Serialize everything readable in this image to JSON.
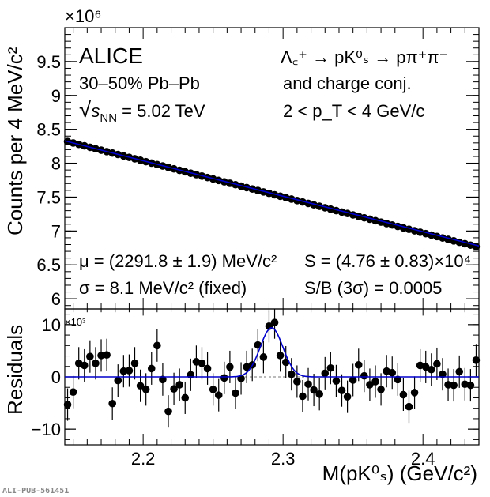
{
  "chart_data": [
    {
      "type": "scatter",
      "panel": "top",
      "ylabel": "Counts per 4 MeV/c²",
      "y_multiplier": "×10⁶",
      "xlim": [
        2.144,
        2.44
      ],
      "ylim": [
        5.85,
        10.0
      ],
      "yticks": [
        6,
        6.5,
        7,
        7.5,
        8,
        8.5,
        9,
        9.5
      ],
      "ytick_labels": [
        "6",
        "6.5",
        "7",
        "7.5",
        "8",
        "8.5",
        "9",
        "9.5"
      ],
      "background_fit": {
        "x0": 2.144,
        "y0": 8.33,
        "x1": 2.44,
        "y1": 6.78,
        "color": "#0000cc"
      },
      "points": {
        "x_start": 2.146,
        "x_step": 0.004,
        "n": 74,
        "y_at_start": 8.32,
        "y_at_end": 6.77
      },
      "annotations": {
        "experiment": "ALICE",
        "centrality": "30–50% Pb–Pb",
        "energy_sqrt": "√",
        "energy_s": "s",
        "energy_sub": "NN",
        "energy_value": " = 5.02 TeV",
        "decay": "Λ꜀⁺ → pK⁰ₛ → pπ⁺π⁻",
        "conj": "and charge conj.",
        "pt_range": "2 < p_T < 4 GeV/c",
        "mu": "μ = (2291.8 ± 1.9) MeV/c²",
        "sigma": "σ = 8.1 MeV/c² (fixed)",
        "signal": "S = (4.76 ± 0.83)×10⁴",
        "sb": "S/B (3σ) = 0.0005"
      }
    },
    {
      "type": "scatter",
      "panel": "bottom",
      "ylabel": "Residuals",
      "y_multiplier": "×10³",
      "xlabel": "M(pK⁰ₛ) (GeV/c²)",
      "xlim": [
        2.144,
        2.44
      ],
      "ylim": [
        -13,
        13
      ],
      "xticks": [
        2.2,
        2.3,
        2.4
      ],
      "xtick_labels": [
        "2.2",
        "2.3",
        "2.4"
      ],
      "yticks": [
        10,
        0,
        -10
      ],
      "ytick_labels": [
        "10",
        "0",
        "−10"
      ],
      "x": [
        2.146,
        2.15,
        2.154,
        2.158,
        2.162,
        2.166,
        2.17,
        2.174,
        2.178,
        2.182,
        2.186,
        2.19,
        2.194,
        2.198,
        2.202,
        2.206,
        2.21,
        2.214,
        2.218,
        2.222,
        2.226,
        2.23,
        2.234,
        2.238,
        2.242,
        2.246,
        2.25,
        2.254,
        2.258,
        2.262,
        2.266,
        2.27,
        2.274,
        2.278,
        2.282,
        2.286,
        2.29,
        2.294,
        2.298,
        2.302,
        2.306,
        2.31,
        2.314,
        2.318,
        2.322,
        2.326,
        2.33,
        2.334,
        2.338,
        2.342,
        2.346,
        2.35,
        2.354,
        2.358,
        2.362,
        2.366,
        2.37,
        2.374,
        2.378,
        2.382,
        2.386,
        2.39,
        2.394,
        2.398,
        2.402,
        2.406,
        2.41,
        2.414,
        2.418,
        2.422,
        2.426,
        2.43,
        2.434,
        2.438
      ],
      "y": [
        -5.3,
        -2.9,
        2.6,
        2.2,
        3.9,
        2.6,
        4.1,
        4.2,
        -5.1,
        -0.7,
        1.1,
        1.2,
        2.6,
        -1.7,
        -2.4,
        1.6,
        6.0,
        -0.5,
        -6.6,
        -2.3,
        -1.5,
        -4.0,
        0.4,
        2.9,
        2.6,
        1.6,
        -2.4,
        -3.5,
        -0.2,
        1.9,
        -3.1,
        -0.3,
        1.9,
        2.3,
        6.1,
        3.8,
        9.7,
        10.4,
        4.1,
        2.8,
        0.5,
        -0.9,
        -3.7,
        -1.4,
        -2.5,
        -3.3,
        0.7,
        1.7,
        -0.8,
        -2.6,
        -3.8,
        -0.6,
        2.3,
        0.2,
        -1.5,
        -0.9,
        -2.4,
        1.1,
        0.8,
        -0.5,
        -3.4,
        -5.7,
        -3.0,
        2.2,
        1.9,
        1.4,
        2.5,
        0.5,
        -1.5,
        -1.6,
        1.0,
        -1.4,
        -1.6,
        3.2
      ],
      "y_err": 3.1,
      "signal_fit": {
        "mu": 2.2918,
        "sigma": 0.0081,
        "amplitude": 9.4,
        "color": "#0000cc"
      }
    }
  ],
  "footer": {
    "id": "ALI-PUB-561451"
  }
}
